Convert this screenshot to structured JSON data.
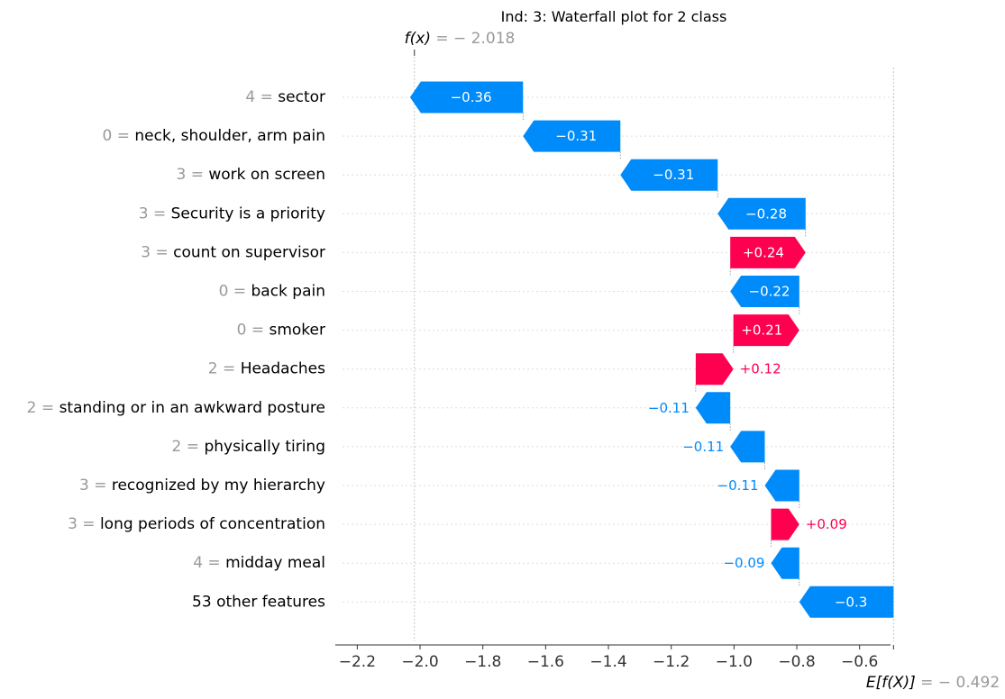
{
  "chart_data": {
    "type": "waterfall",
    "title": "Ind: 3: Waterfall plot for 2 class",
    "fx_label": "f(x)",
    "fx_value_text": " = − 2.018",
    "fx_value": -2.018,
    "efx_label": "E[f(X)]",
    "efx_value_text": " = − 0.492",
    "base_value": -0.492,
    "xlim": [
      -2.27,
      -0.49
    ],
    "xticks": [
      -2.2,
      -2.0,
      -1.8,
      -1.6,
      -1.4,
      -1.2,
      -1.0,
      -0.8,
      -0.6
    ],
    "xtick_labels": [
      "−2.2",
      "−2.0",
      "−1.8",
      "−1.6",
      "−1.4",
      "−1.2",
      "−1.0",
      "−0.8",
      "−0.6"
    ],
    "rows": [
      {
        "value": "4",
        "feature": "sector",
        "shap": -0.36,
        "label": "−0.36"
      },
      {
        "value": "0",
        "feature": "neck, shoulder, arm pain",
        "shap": -0.31,
        "label": "−0.31"
      },
      {
        "value": "3",
        "feature": "work on screen",
        "shap": -0.31,
        "label": "−0.31"
      },
      {
        "value": "3",
        "feature": "Security is a priority",
        "shap": -0.28,
        "label": "−0.28"
      },
      {
        "value": "3",
        "feature": "count on supervisor",
        "shap": 0.24,
        "label": "+0.24"
      },
      {
        "value": "0",
        "feature": "back pain",
        "shap": -0.22,
        "label": "−0.22"
      },
      {
        "value": "0",
        "feature": "smoker",
        "shap": 0.21,
        "label": "+0.21"
      },
      {
        "value": "2",
        "feature": "Headaches",
        "shap": 0.12,
        "label": "+0.12"
      },
      {
        "value": "2",
        "feature": "standing or in an awkward posture",
        "shap": -0.11,
        "label": "−0.11"
      },
      {
        "value": "2",
        "feature": "physically tiring",
        "shap": -0.11,
        "label": "−0.11"
      },
      {
        "value": "3",
        "feature": "recognized by my hierarchy",
        "shap": -0.11,
        "label": "−0.11"
      },
      {
        "value": "3",
        "feature": "long periods of concentration",
        "shap": 0.09,
        "label": "+0.09"
      },
      {
        "value": "4",
        "feature": "midday meal",
        "shap": -0.09,
        "label": "−0.09"
      },
      {
        "value": "",
        "feature": "53 other features",
        "shap": -0.3,
        "label": "−0.3"
      }
    ],
    "colors": {
      "positive": "#ff0051",
      "negative": "#008bfb",
      "muted": "#999999",
      "axis": "#333333",
      "grid": "#dddddd"
    }
  }
}
